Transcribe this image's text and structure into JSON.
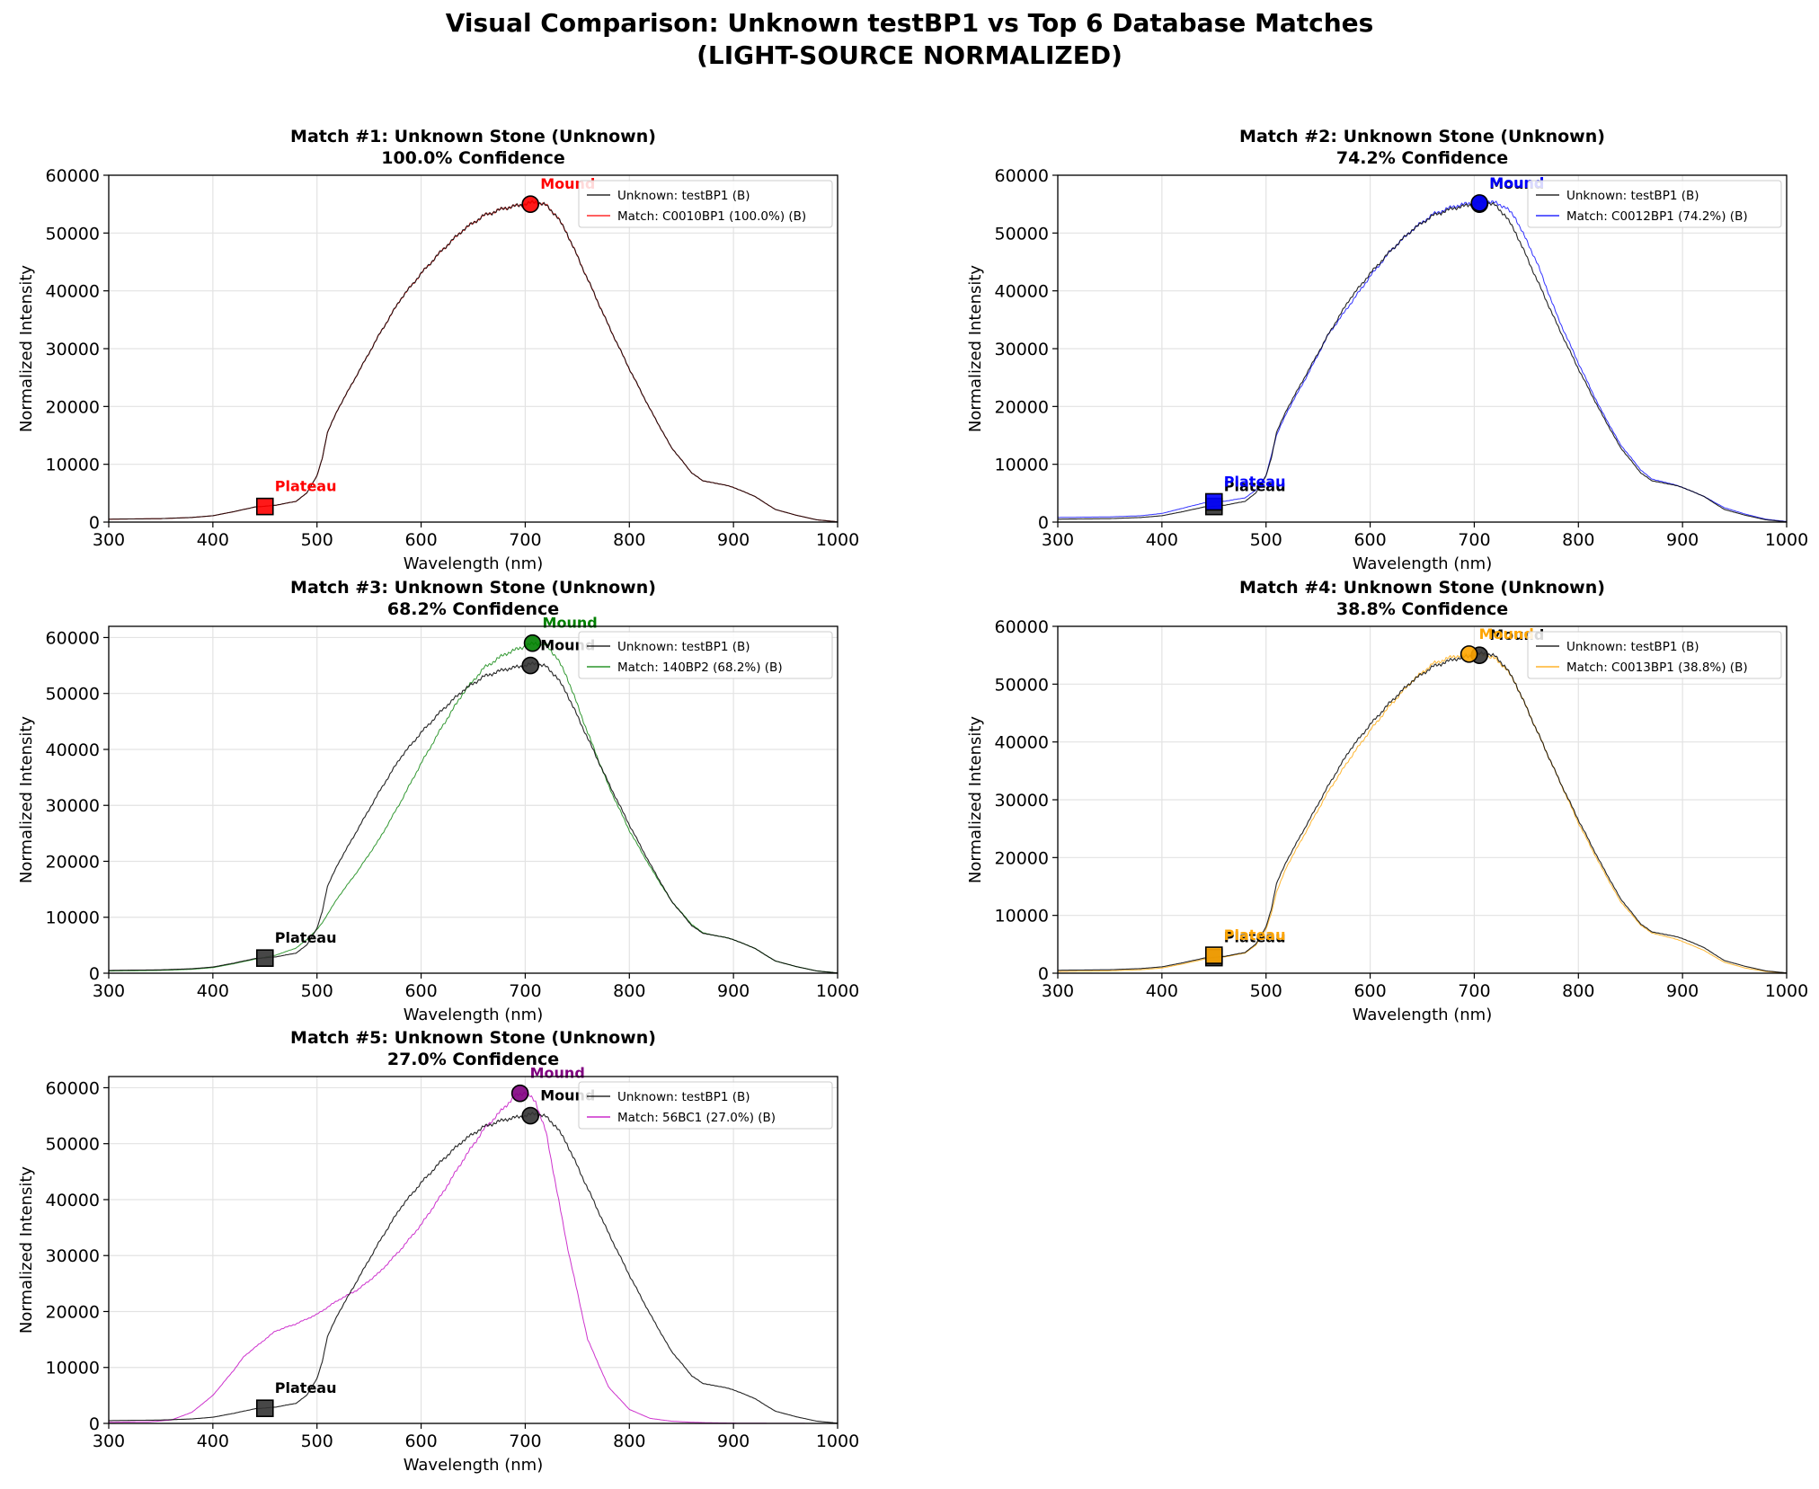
{
  "figure": {
    "title_line1": "Visual Comparison: Unknown testBP1 vs Top 6 Database Matches",
    "title_line2": "(LIGHT-SOURCE NORMALIZED)"
  },
  "chart_data": [
    {
      "type": "line",
      "title": "Match #1: Unknown Stone (Unknown)",
      "subtitle": "100.0% Confidence",
      "xlabel": "Wavelength (nm)",
      "ylabel": "Normalized Intensity",
      "xlim": [
        300,
        1000
      ],
      "ylim": [
        0,
        60000
      ],
      "xticks": [
        300,
        400,
        500,
        600,
        700,
        800,
        900,
        1000
      ],
      "yticks": [
        0,
        10000,
        20000,
        30000,
        40000,
        50000,
        60000
      ],
      "grid": true,
      "legend": "top-right",
      "color": "#ff0000",
      "series": [
        {
          "name": "Unknown: testBP1 (B)",
          "color": "#000000",
          "curve": "unknown"
        },
        {
          "name": "Match: C0010BP1 (100.0%) (B)",
          "color": "#ff0000",
          "curve": "unknown"
        }
      ],
      "markers": [
        {
          "label": "Plateau",
          "kind": "square",
          "x": 450,
          "y": 2700,
          "color": "#ff0000"
        },
        {
          "label": "Mound",
          "kind": "circle",
          "x": 705,
          "y": 55000,
          "color": "#ff0000"
        }
      ],
      "plain_labels": []
    },
    {
      "type": "line",
      "title": "Match #2: Unknown Stone (Unknown)",
      "subtitle": "74.2% Confidence",
      "xlabel": "Wavelength (nm)",
      "ylabel": "Normalized Intensity",
      "xlim": [
        300,
        1000
      ],
      "ylim": [
        0,
        60000
      ],
      "xticks": [
        300,
        400,
        500,
        600,
        700,
        800,
        900,
        1000
      ],
      "yticks": [
        0,
        10000,
        20000,
        30000,
        40000,
        50000,
        60000
      ],
      "grid": true,
      "legend": "top-right",
      "color": "#0000ff",
      "series": [
        {
          "name": "Unknown: testBP1 (B)",
          "color": "#000000",
          "curve": "unknown"
        },
        {
          "name": "Match: C0012BP1 (74.2%) (B)",
          "color": "#0000ff",
          "curve": "m2"
        }
      ],
      "markers": [
        {
          "label": "Plateau",
          "kind": "square",
          "x": 450,
          "y": 2700,
          "color": "#333333"
        },
        {
          "label": "Mound",
          "kind": "circle",
          "x": 705,
          "y": 55000,
          "color": "#333333"
        },
        {
          "label": "Plateau",
          "kind": "square",
          "x": 450,
          "y": 3500,
          "color": "#0000ff"
        },
        {
          "label": "Mound",
          "kind": "circle",
          "x": 705,
          "y": 55200,
          "color": "#0000ff"
        }
      ],
      "plain_labels": []
    },
    {
      "type": "line",
      "title": "Match #3: Unknown Stone (Unknown)",
      "subtitle": "68.2% Confidence",
      "xlabel": "Wavelength (nm)",
      "ylabel": "Normalized Intensity",
      "xlim": [
        300,
        1000
      ],
      "ylim": [
        0,
        62000
      ],
      "xticks": [
        300,
        400,
        500,
        600,
        700,
        800,
        900,
        1000
      ],
      "yticks": [
        0,
        10000,
        20000,
        30000,
        40000,
        50000,
        60000
      ],
      "grid": true,
      "legend": "top-right",
      "color": "#008000",
      "series": [
        {
          "name": "Unknown: testBP1 (B)",
          "color": "#000000",
          "curve": "unknown"
        },
        {
          "name": "Match: 140BP2 (68.2%) (B)",
          "color": "#008000",
          "curve": "m3"
        }
      ],
      "markers": [
        {
          "label": "Plateau",
          "kind": "square",
          "x": 450,
          "y": 2700,
          "color": "#333333"
        },
        {
          "label": "Mound",
          "kind": "circle",
          "x": 705,
          "y": 55000,
          "color": "#333333"
        },
        {
          "label": "Mound",
          "kind": "circle",
          "x": 707,
          "y": 59000,
          "color": "#008000"
        }
      ],
      "plain_labels": []
    },
    {
      "type": "line",
      "title": "Match #4: Unknown Stone (Unknown)",
      "subtitle": "38.8% Confidence",
      "xlabel": "Wavelength (nm)",
      "ylabel": "Normalized Intensity",
      "xlim": [
        300,
        1000
      ],
      "ylim": [
        0,
        60000
      ],
      "xticks": [
        300,
        400,
        500,
        600,
        700,
        800,
        900,
        1000
      ],
      "yticks": [
        0,
        10000,
        20000,
        30000,
        40000,
        50000,
        60000
      ],
      "grid": true,
      "legend": "top-right",
      "color": "#ffa500",
      "series": [
        {
          "name": "Unknown: testBP1 (B)",
          "color": "#000000",
          "curve": "unknown"
        },
        {
          "name": "Match: C0013BP1 (38.8%) (B)",
          "color": "#ffa500",
          "curve": "m4"
        }
      ],
      "markers": [
        {
          "label": "Plateau",
          "kind": "square",
          "x": 450,
          "y": 2700,
          "color": "#333333"
        },
        {
          "label": "Mound",
          "kind": "circle",
          "x": 705,
          "y": 55000,
          "color": "#333333"
        },
        {
          "label": "Plateau",
          "kind": "square",
          "x": 450,
          "y": 3100,
          "color": "#ffa500"
        },
        {
          "label": "Mound",
          "kind": "circle",
          "x": 695,
          "y": 55200,
          "color": "#ffa500"
        }
      ],
      "plain_labels": []
    },
    {
      "type": "line",
      "title": "Match #5: Unknown Stone (Unknown)",
      "subtitle": "27.0% Confidence",
      "xlabel": "Wavelength (nm)",
      "ylabel": "Normalized Intensity",
      "xlim": [
        300,
        1000
      ],
      "ylim": [
        0,
        62000
      ],
      "xticks": [
        300,
        400,
        500,
        600,
        700,
        800,
        900,
        1000
      ],
      "yticks": [
        0,
        10000,
        20000,
        30000,
        40000,
        50000,
        60000
      ],
      "grid": true,
      "legend": "top-right",
      "color": "#800080",
      "series": [
        {
          "name": "Unknown: testBP1 (B)",
          "color": "#000000",
          "curve": "unknown"
        },
        {
          "name": "Match: 56BC1 (27.0%) (B)",
          "color": "#c000c0",
          "curve": "m5"
        }
      ],
      "markers": [
        {
          "label": "Plateau",
          "kind": "square",
          "x": 450,
          "y": 2700,
          "color": "#333333"
        },
        {
          "label": "Mound",
          "kind": "circle",
          "x": 705,
          "y": 55000,
          "color": "#333333"
        },
        {
          "label": "Mound",
          "kind": "circle",
          "x": 695,
          "y": 59000,
          "color": "#800080"
        }
      ],
      "plain_labels": []
    }
  ],
  "curves": {
    "unknown": {
      "x": [
        300,
        350,
        380,
        400,
        420,
        440,
        460,
        480,
        490,
        500,
        505,
        510,
        520,
        540,
        560,
        580,
        600,
        620,
        640,
        660,
        680,
        700,
        710,
        720,
        730,
        740,
        760,
        780,
        800,
        820,
        840,
        860,
        870,
        880,
        890,
        900,
        920,
        940,
        960,
        980,
        1000
      ],
      "y": [
        500,
        600,
        800,
        1100,
        1800,
        2600,
        2900,
        3600,
        5000,
        8000,
        11000,
        15500,
        19500,
        26000,
        32500,
        38500,
        43000,
        47000,
        50500,
        53000,
        54300,
        55000,
        55400,
        54800,
        53000,
        50000,
        42000,
        34000,
        26500,
        19500,
        13000,
        8500,
        7200,
        6800,
        6500,
        6000,
        4500,
        2200,
        1200,
        400,
        50
      ]
    },
    "m2": {
      "x": [
        300,
        350,
        380,
        400,
        420,
        440,
        460,
        480,
        490,
        500,
        505,
        510,
        520,
        540,
        560,
        580,
        600,
        620,
        640,
        660,
        680,
        700,
        710,
        720,
        730,
        740,
        760,
        780,
        800,
        820,
        840,
        860,
        870,
        880,
        890,
        900,
        920,
        940,
        960,
        980,
        1000
      ],
      "y": [
        800,
        900,
        1100,
        1500,
        2400,
        3300,
        3600,
        4200,
        5500,
        8000,
        11500,
        15000,
        19000,
        25500,
        32500,
        37500,
        42500,
        47000,
        50500,
        53200,
        54600,
        55300,
        55600,
        55200,
        54500,
        52500,
        45000,
        35500,
        27500,
        20000,
        13500,
        9000,
        7500,
        7000,
        6600,
        6000,
        4500,
        2500,
        1400,
        500,
        100
      ]
    },
    "m3": {
      "x": [
        300,
        350,
        380,
        400,
        420,
        440,
        460,
        480,
        490,
        500,
        505,
        510,
        520,
        540,
        560,
        580,
        600,
        620,
        640,
        660,
        680,
        700,
        710,
        720,
        730,
        740,
        760,
        780,
        800,
        820,
        840,
        860,
        870,
        880,
        890,
        900,
        920,
        940,
        960,
        980,
        1000
      ],
      "y": [
        400,
        500,
        700,
        1000,
        1700,
        2500,
        3200,
        4500,
        6000,
        7800,
        9000,
        10500,
        13500,
        18500,
        24000,
        30500,
        37500,
        44000,
        50000,
        54500,
        57000,
        58500,
        59000,
        58700,
        56500,
        53000,
        43000,
        33500,
        25500,
        19000,
        13000,
        8700,
        7300,
        6800,
        6500,
        6000,
        4500,
        2200,
        1200,
        400,
        50
      ]
    },
    "m4": {
      "x": [
        300,
        350,
        380,
        400,
        420,
        440,
        460,
        480,
        490,
        500,
        505,
        510,
        520,
        540,
        560,
        580,
        600,
        620,
        640,
        660,
        680,
        700,
        710,
        720,
        730,
        740,
        760,
        780,
        800,
        820,
        840,
        860,
        870,
        880,
        890,
        900,
        920,
        940,
        960,
        980,
        1000
      ],
      "y": [
        300,
        400,
        600,
        900,
        1600,
        2400,
        2800,
        3500,
        4800,
        7600,
        10300,
        14000,
        18500,
        25000,
        31500,
        37000,
        42000,
        46500,
        50500,
        53500,
        54800,
        55200,
        55000,
        54400,
        52800,
        50000,
        42000,
        34000,
        26000,
        19000,
        12500,
        8300,
        7000,
        6500,
        6100,
        5500,
        4000,
        1900,
        900,
        300,
        30
      ]
    },
    "m5": {
      "x": [
        300,
        340,
        360,
        380,
        400,
        420,
        430,
        440,
        450,
        460,
        480,
        500,
        520,
        540,
        560,
        580,
        600,
        620,
        640,
        660,
        680,
        690,
        700,
        710,
        720,
        730,
        740,
        760,
        780,
        800,
        820,
        840,
        860,
        880,
        900,
        920,
        960,
        1000
      ],
      "y": [
        200,
        300,
        600,
        2000,
        5000,
        9500,
        12000,
        13500,
        15000,
        16500,
        17800,
        19500,
        22000,
        24000,
        27000,
        31000,
        35500,
        41000,
        47000,
        52500,
        56500,
        58500,
        59200,
        57500,
        52000,
        42000,
        32000,
        15000,
        6500,
        2500,
        900,
        400,
        200,
        100,
        60,
        30,
        10,
        0
      ]
    }
  }
}
